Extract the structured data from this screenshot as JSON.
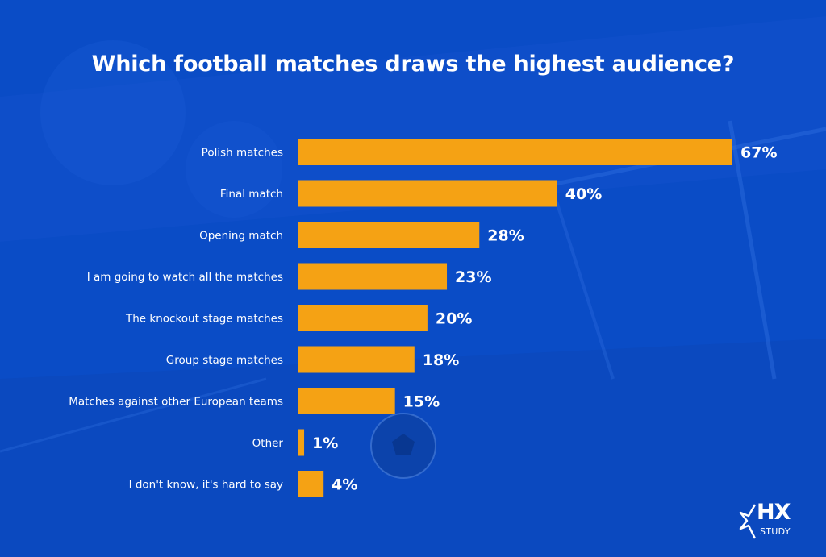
{
  "chart_data": {
    "type": "bar",
    "orientation": "horizontal",
    "title": "Which football matches draws the highest audience?",
    "xlabel": "",
    "ylabel": "",
    "xlim": [
      0,
      67
    ],
    "grid": false,
    "categories": [
      "Polish matches",
      "Final match",
      "Opening match",
      "I am going to watch all the matches",
      "The knockout stage matches",
      "Group stage matches",
      "Matches against other European teams",
      "Other",
      "I don't know, it's hard to say"
    ],
    "values": [
      67,
      40,
      28,
      23,
      20,
      18,
      15,
      1,
      4
    ],
    "value_labels": [
      "67%",
      "40%",
      "28%",
      "23%",
      "20%",
      "18%",
      "15%",
      "1%",
      "4%"
    ],
    "bar_color": "#f5a214",
    "background_color": "#0a4cc6"
  },
  "brand": {
    "logo_text": "HX",
    "logo_subtext": "STUDY"
  }
}
